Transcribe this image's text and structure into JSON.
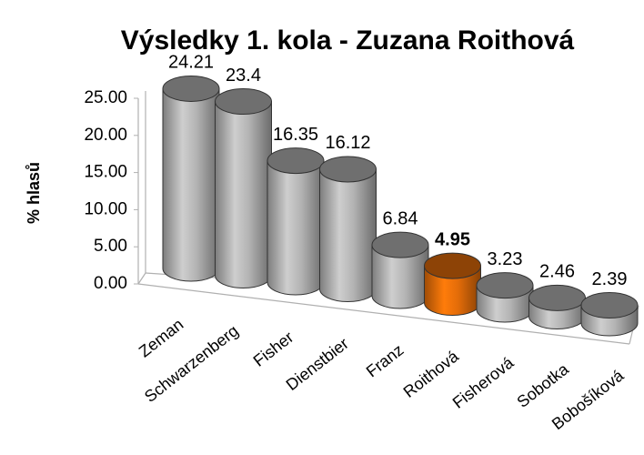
{
  "chart_data": {
    "type": "bar3d",
    "title": "Výsledky 1. kola - Zuzana Roithová",
    "ylabel": "% hlasů",
    "categories": [
      "Zeman",
      "Schwarzenberg",
      "Fisher",
      "Dienstbier",
      "Franz",
      "Roithová",
      "Fisherová",
      "Sobotka",
      "Bobošíková"
    ],
    "values": [
      24.21,
      23.4,
      16.35,
      16.12,
      6.84,
      4.95,
      3.23,
      2.46,
      2.39
    ],
    "color": "#b3b3b3",
    "colors": [
      "#b3b3b3",
      "#b3b3b3",
      "#b3b3b3",
      "#b3b3b3",
      "#b3b3b3",
      "#e36c09",
      "#b3b3b3",
      "#b3b3b3",
      "#b3b3b3"
    ],
    "ylim": [
      0,
      25
    ],
    "yticks": [
      {
        "value": 0,
        "label": "0.00"
      },
      {
        "value": 5,
        "label": "5.00"
      },
      {
        "value": 10,
        "label": "10.00"
      },
      {
        "value": 15,
        "label": "15.00"
      },
      {
        "value": 20,
        "label": "20.00"
      },
      {
        "value": 25,
        "label": "25.00"
      }
    ]
  }
}
